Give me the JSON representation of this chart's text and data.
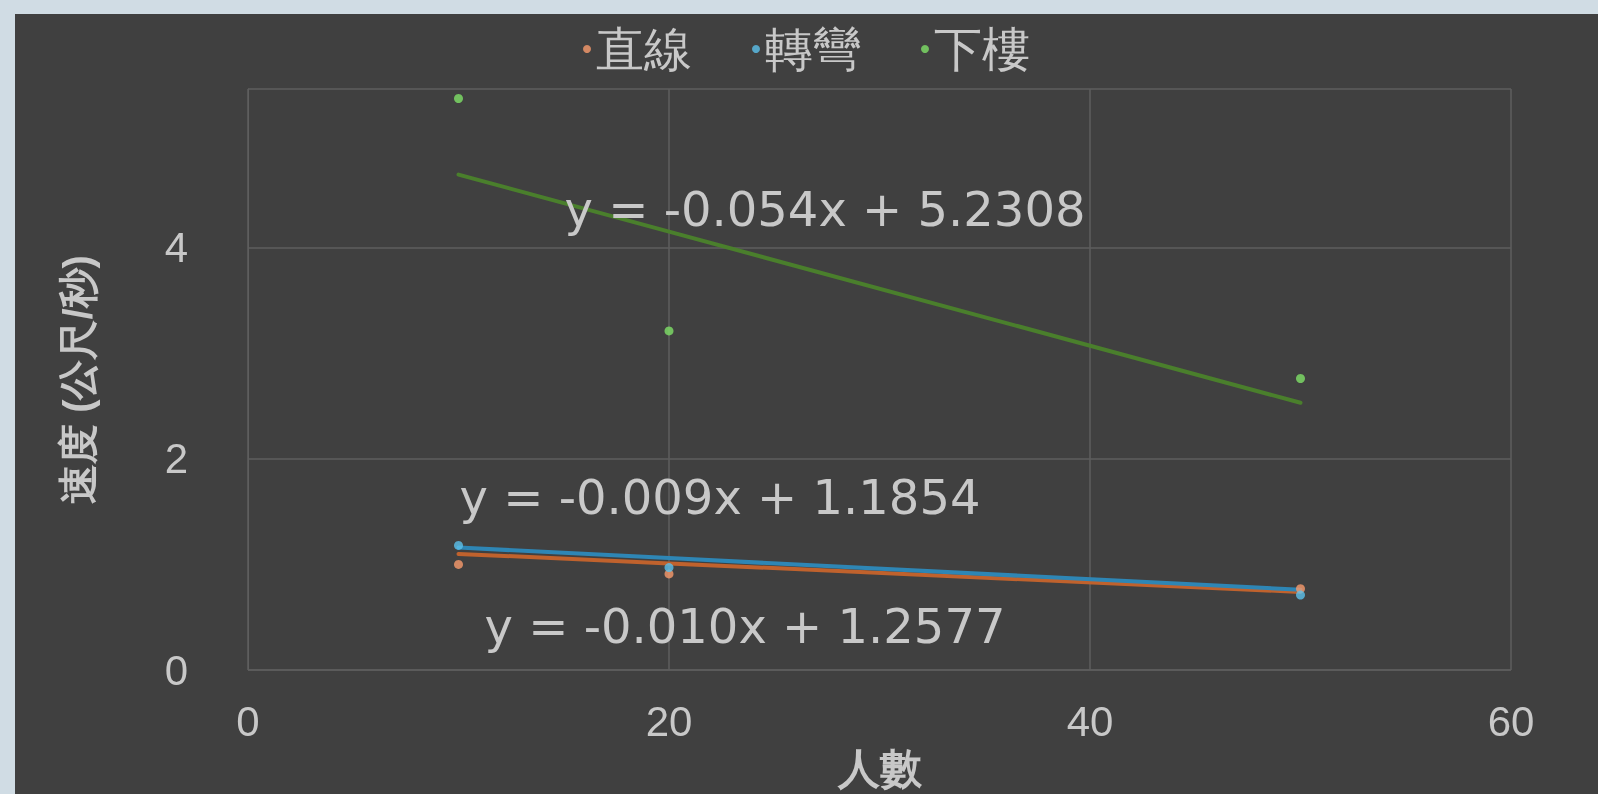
{
  "chart_data": {
    "type": "scatter",
    "xlabel": "人數",
    "ylabel": "速度 (公尺/秒)",
    "x": [
      10,
      20,
      50
    ],
    "series": [
      {
        "name": "直線",
        "color": "#f79a6b",
        "values": [
          1.0,
          0.91,
          0.77
        ]
      },
      {
        "name": "轉彎",
        "color": "#5bc0eb",
        "values": [
          1.18,
          0.97,
          0.71
        ]
      },
      {
        "name": "下樓",
        "color": "#7ee067",
        "values": [
          5.41,
          3.21,
          2.76
        ]
      },
      {
        "type": "line",
        "marker": "none",
        "color": "#c0622d",
        "values": [
          1.1,
          1.01,
          0.74
        ]
      },
      {
        "type": "line",
        "marker": "none",
        "color": "#2e86b5",
        "values": [
          1.16,
          1.06,
          0.76
        ]
      },
      {
        "type": "line",
        "marker": "none",
        "color": "#4a7f2c",
        "values": [
          4.69,
          4.15,
          2.53
        ]
      }
    ],
    "annotations": [
      "y = -0.054x + 5.2308",
      "y = -0.009x + 1.1854",
      "y = -0.010x + 1.2577"
    ],
    "xlim": [
      0,
      60
    ],
    "xticks": [
      0,
      20,
      40,
      60
    ],
    "ylim": [
      0,
      5.5
    ],
    "yticks": [
      0,
      2,
      4
    ],
    "grid": true,
    "legend": "top",
    "marker": "circle",
    "line_style": "solid"
  }
}
